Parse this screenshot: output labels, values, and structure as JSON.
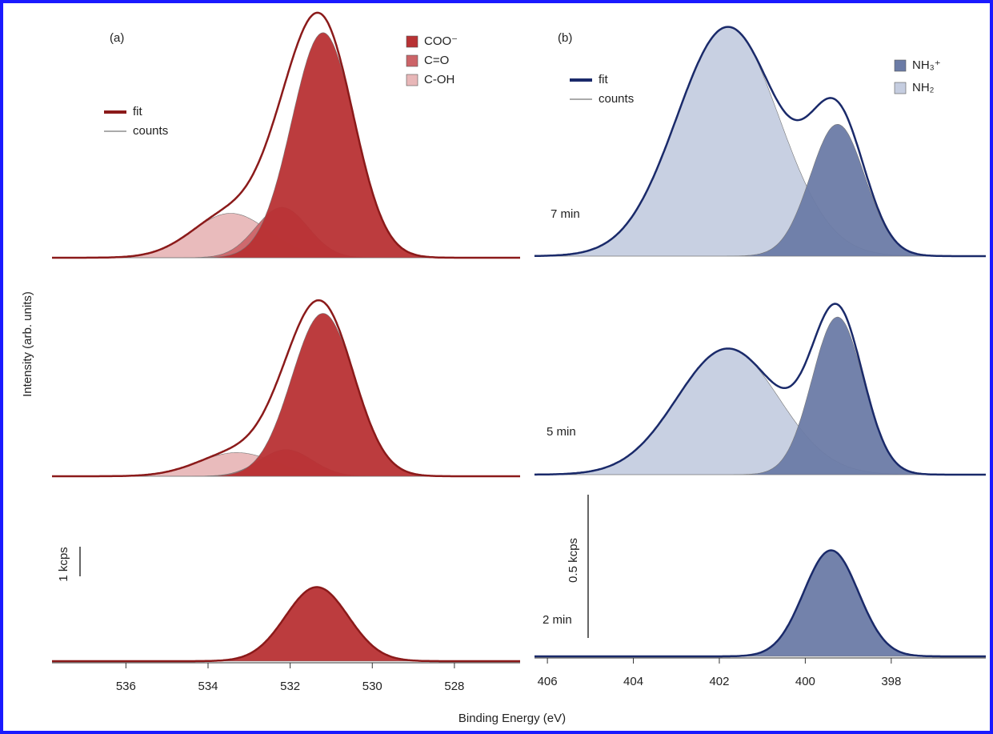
{
  "xlabel": "Binding Energy (eV)",
  "ylabel": "Intensity (arb. units)",
  "chart_data": [
    {
      "type": "line",
      "title": "(a)",
      "xlim": [
        537.8,
        526.4
      ],
      "xticks": [
        536,
        534,
        532,
        530,
        528
      ],
      "fit_label": "fit",
      "fit_color": "#8b1a1a",
      "counts_label": "counts",
      "scale_bar": {
        "value": 1,
        "label": "1 kcps"
      },
      "series": [
        {
          "name": "COO⁻",
          "color": "#b83234",
          "center": [
            531.2,
            531.2,
            531.35
          ],
          "height": [
            7.6,
            5.5,
            2.5
          ],
          "fwhm": [
            1.8,
            1.8,
            1.8
          ]
        },
        {
          "name": "C=O",
          "color": "#cc6468",
          "center": [
            532.2,
            532.1,
            null
          ],
          "height": [
            1.7,
            0.9,
            null
          ],
          "fwhm": [
            1.5,
            1.5,
            null
          ]
        },
        {
          "name": "C-OH",
          "color": "#e8b7b8",
          "center": [
            533.45,
            533.3,
            null
          ],
          "height": [
            1.5,
            0.8,
            null
          ],
          "fwhm": [
            2.2,
            2.2,
            null
          ]
        }
      ]
    },
    {
      "type": "line",
      "title": "(b)",
      "xlim": [
        406.3,
        395.8
      ],
      "xticks": [
        406,
        404,
        402,
        400,
        398
      ],
      "fit_label": "fit",
      "fit_color": "#1a2a6a",
      "counts_label": "counts",
      "scale_bar": {
        "value": 0.5,
        "label": "0.5 kcps"
      },
      "spectra_labels": [
        "7 min",
        "5 min",
        "2 min"
      ],
      "series": [
        {
          "name": "NH₃⁺",
          "color": "#6b7ba6",
          "center": [
            399.25,
            399.25,
            399.4
          ],
          "height": [
            0.46,
            0.55,
            0.37
          ],
          "fwhm": [
            1.5,
            1.4,
            1.5
          ]
        },
        {
          "name": "NH₂",
          "color": "#c5cde0",
          "center": [
            401.8,
            401.8,
            null
          ],
          "height": [
            0.8,
            0.44,
            null
          ],
          "fwhm": [
            2.8,
            2.8,
            null
          ]
        }
      ]
    }
  ]
}
